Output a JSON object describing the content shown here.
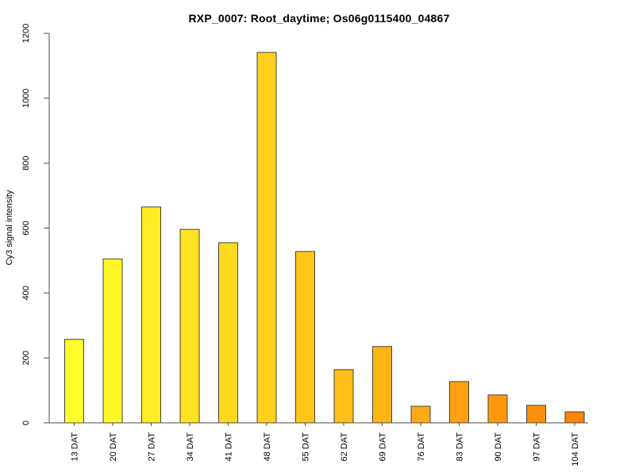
{
  "figure": {
    "title": "RXP_0007: Root_daytime; Os06g0115400_04867",
    "y_axis_label": "Cy3 signal intensity"
  },
  "chart_data": {
    "type": "bar",
    "title": "RXP_0007: Root_daytime; Os06g0115400_04867",
    "xlabel": "",
    "ylabel": "Cy3 signal intensity",
    "categories": [
      "13 DAT",
      "20 DAT",
      "27 DAT",
      "34 DAT",
      "41 DAT",
      "48 DAT",
      "55 DAT",
      "62 DAT",
      "69 DAT",
      "76 DAT",
      "83 DAT",
      "90 DAT",
      "97 DAT",
      "104 DAT"
    ],
    "values": [
      257,
      505,
      665,
      596,
      555,
      1141,
      528,
      164,
      235,
      51,
      127,
      86,
      54,
      34
    ],
    "bar_colors": [
      "#FFFF2A",
      "#FFF627",
      "#FFEC25",
      "#FFE322",
      "#FFD920",
      "#FFD01D",
      "#FFC71A",
      "#FFBD18",
      "#FFB415",
      "#FFAA13",
      "#FFA110",
      "#FF980D",
      "#FF8E0B",
      "#FF8508"
    ],
    "bar_border_color": "#45432F",
    "axis_color": "#4D4D4D",
    "text_color": "#000000",
    "background": "#FFFFFF",
    "ylim": [
      0,
      1200
    ],
    "yticks": [
      0,
      200,
      400,
      600,
      800,
      1000,
      1200
    ],
    "grid": false,
    "legend": null
  }
}
